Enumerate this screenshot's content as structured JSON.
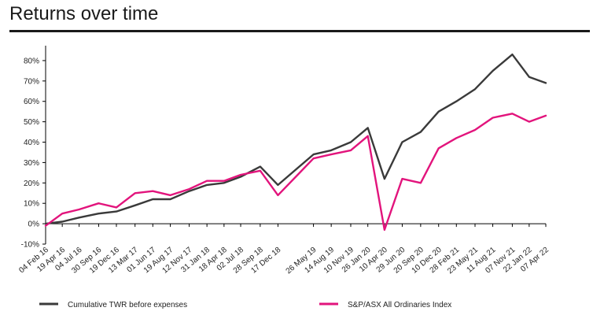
{
  "title": "Returns over time",
  "colors": {
    "twr": "#3a3a3a",
    "index": "#e2147c",
    "axis": "#000000"
  },
  "chart_data": {
    "type": "line",
    "title": "Returns over time",
    "xlabel": "",
    "ylabel": "",
    "ylim": [
      -0.1,
      0.85
    ],
    "yticks": [
      "80%",
      "70%",
      "60%",
      "50%",
      "40%",
      "30%",
      "20%",
      "10%",
      "0%",
      "-10%"
    ],
    "ytick_values": [
      0.8,
      0.7,
      0.6,
      0.5,
      0.4,
      0.3,
      0.2,
      0.1,
      0.0,
      -0.1
    ],
    "xticks": [
      "04 Feb 16",
      "19 Apr 16",
      "04 Jul 16",
      "30 Sep 16",
      "19 Dec 16",
      "13 Mar 17",
      "01 Jun 17",
      "19 Aug 17",
      "12 Nov 17",
      "31 Jan 18",
      "18 Apr 18",
      "02 Jul 18",
      "28 Sep 18",
      "17 Dec 18",
      "26 May 19",
      "14 Aug 19",
      "10 Nov 19",
      "26 Jan 20",
      "10 Apr 20",
      "29 Jun 20",
      "20 Sep 20",
      "10 Dec 20",
      "28 Feb 21",
      "23 May 21",
      "11 Aug 21",
      "07 Nov 21",
      "22 Jan 22",
      "07 Apr 22"
    ],
    "grid": false,
    "legend": "bottom",
    "series": [
      {
        "name": "Cumulative TWR before expenses",
        "color": "#3a3a3a",
        "points": [
          [
            "04 Feb 16",
            0.0
          ],
          [
            "19 Apr 16",
            0.01
          ],
          [
            "04 Jul 16",
            0.03
          ],
          [
            "30 Sep 16",
            0.05
          ],
          [
            "19 Dec 16",
            0.06
          ],
          [
            "13 Mar 17",
            0.09
          ],
          [
            "01 Jun 17",
            0.12
          ],
          [
            "19 Aug 17",
            0.12
          ],
          [
            "12 Nov 17",
            0.16
          ],
          [
            "31 Jan 18",
            0.19
          ],
          [
            "18 Apr 18",
            0.2
          ],
          [
            "02 Jul 18",
            0.23
          ],
          [
            "28 Sep 18",
            0.28
          ],
          [
            "17 Dec 18",
            0.19
          ],
          [
            "26 May 19",
            0.34
          ],
          [
            "14 Aug 19",
            0.36
          ],
          [
            "10 Nov 19",
            0.4
          ],
          [
            "26 Jan 20",
            0.47
          ],
          [
            "10 Apr 20",
            0.22
          ],
          [
            "29 Jun 20",
            0.4
          ],
          [
            "20 Sep 20",
            0.45
          ],
          [
            "10 Dec 20",
            0.55
          ],
          [
            "28 Feb 21",
            0.6
          ],
          [
            "23 May 21",
            0.66
          ],
          [
            "11 Aug 21",
            0.75
          ],
          [
            "07 Nov 21",
            0.83
          ],
          [
            "22 Jan 22",
            0.72
          ],
          [
            "07 Apr 22",
            0.69
          ]
        ]
      },
      {
        "name": "S&P/ASX All Ordinaries Index",
        "color": "#e2147c",
        "points": [
          [
            "04 Feb 16",
            -0.01
          ],
          [
            "19 Apr 16",
            0.05
          ],
          [
            "04 Jul 16",
            0.07
          ],
          [
            "30 Sep 16",
            0.1
          ],
          [
            "19 Dec 16",
            0.08
          ],
          [
            "13 Mar 17",
            0.15
          ],
          [
            "01 Jun 17",
            0.16
          ],
          [
            "19 Aug 17",
            0.14
          ],
          [
            "12 Nov 17",
            0.17
          ],
          [
            "31 Jan 18",
            0.21
          ],
          [
            "18 Apr 18",
            0.21
          ],
          [
            "02 Jul 18",
            0.24
          ],
          [
            "28 Sep 18",
            0.26
          ],
          [
            "17 Dec 18",
            0.14
          ],
          [
            "26 May 19",
            0.32
          ],
          [
            "14 Aug 19",
            0.34
          ],
          [
            "10 Nov 19",
            0.36
          ],
          [
            "26 Jan 20",
            0.43
          ],
          [
            "10 Apr 20",
            -0.03
          ],
          [
            "29 Jun 20",
            0.22
          ],
          [
            "20 Sep 20",
            0.2
          ],
          [
            "10 Dec 20",
            0.37
          ],
          [
            "28 Feb 21",
            0.42
          ],
          [
            "23 May 21",
            0.46
          ],
          [
            "11 Aug 21",
            0.52
          ],
          [
            "07 Nov 21",
            0.54
          ],
          [
            "22 Jan 22",
            0.5
          ],
          [
            "07 Apr 22",
            0.53
          ]
        ]
      }
    ]
  }
}
